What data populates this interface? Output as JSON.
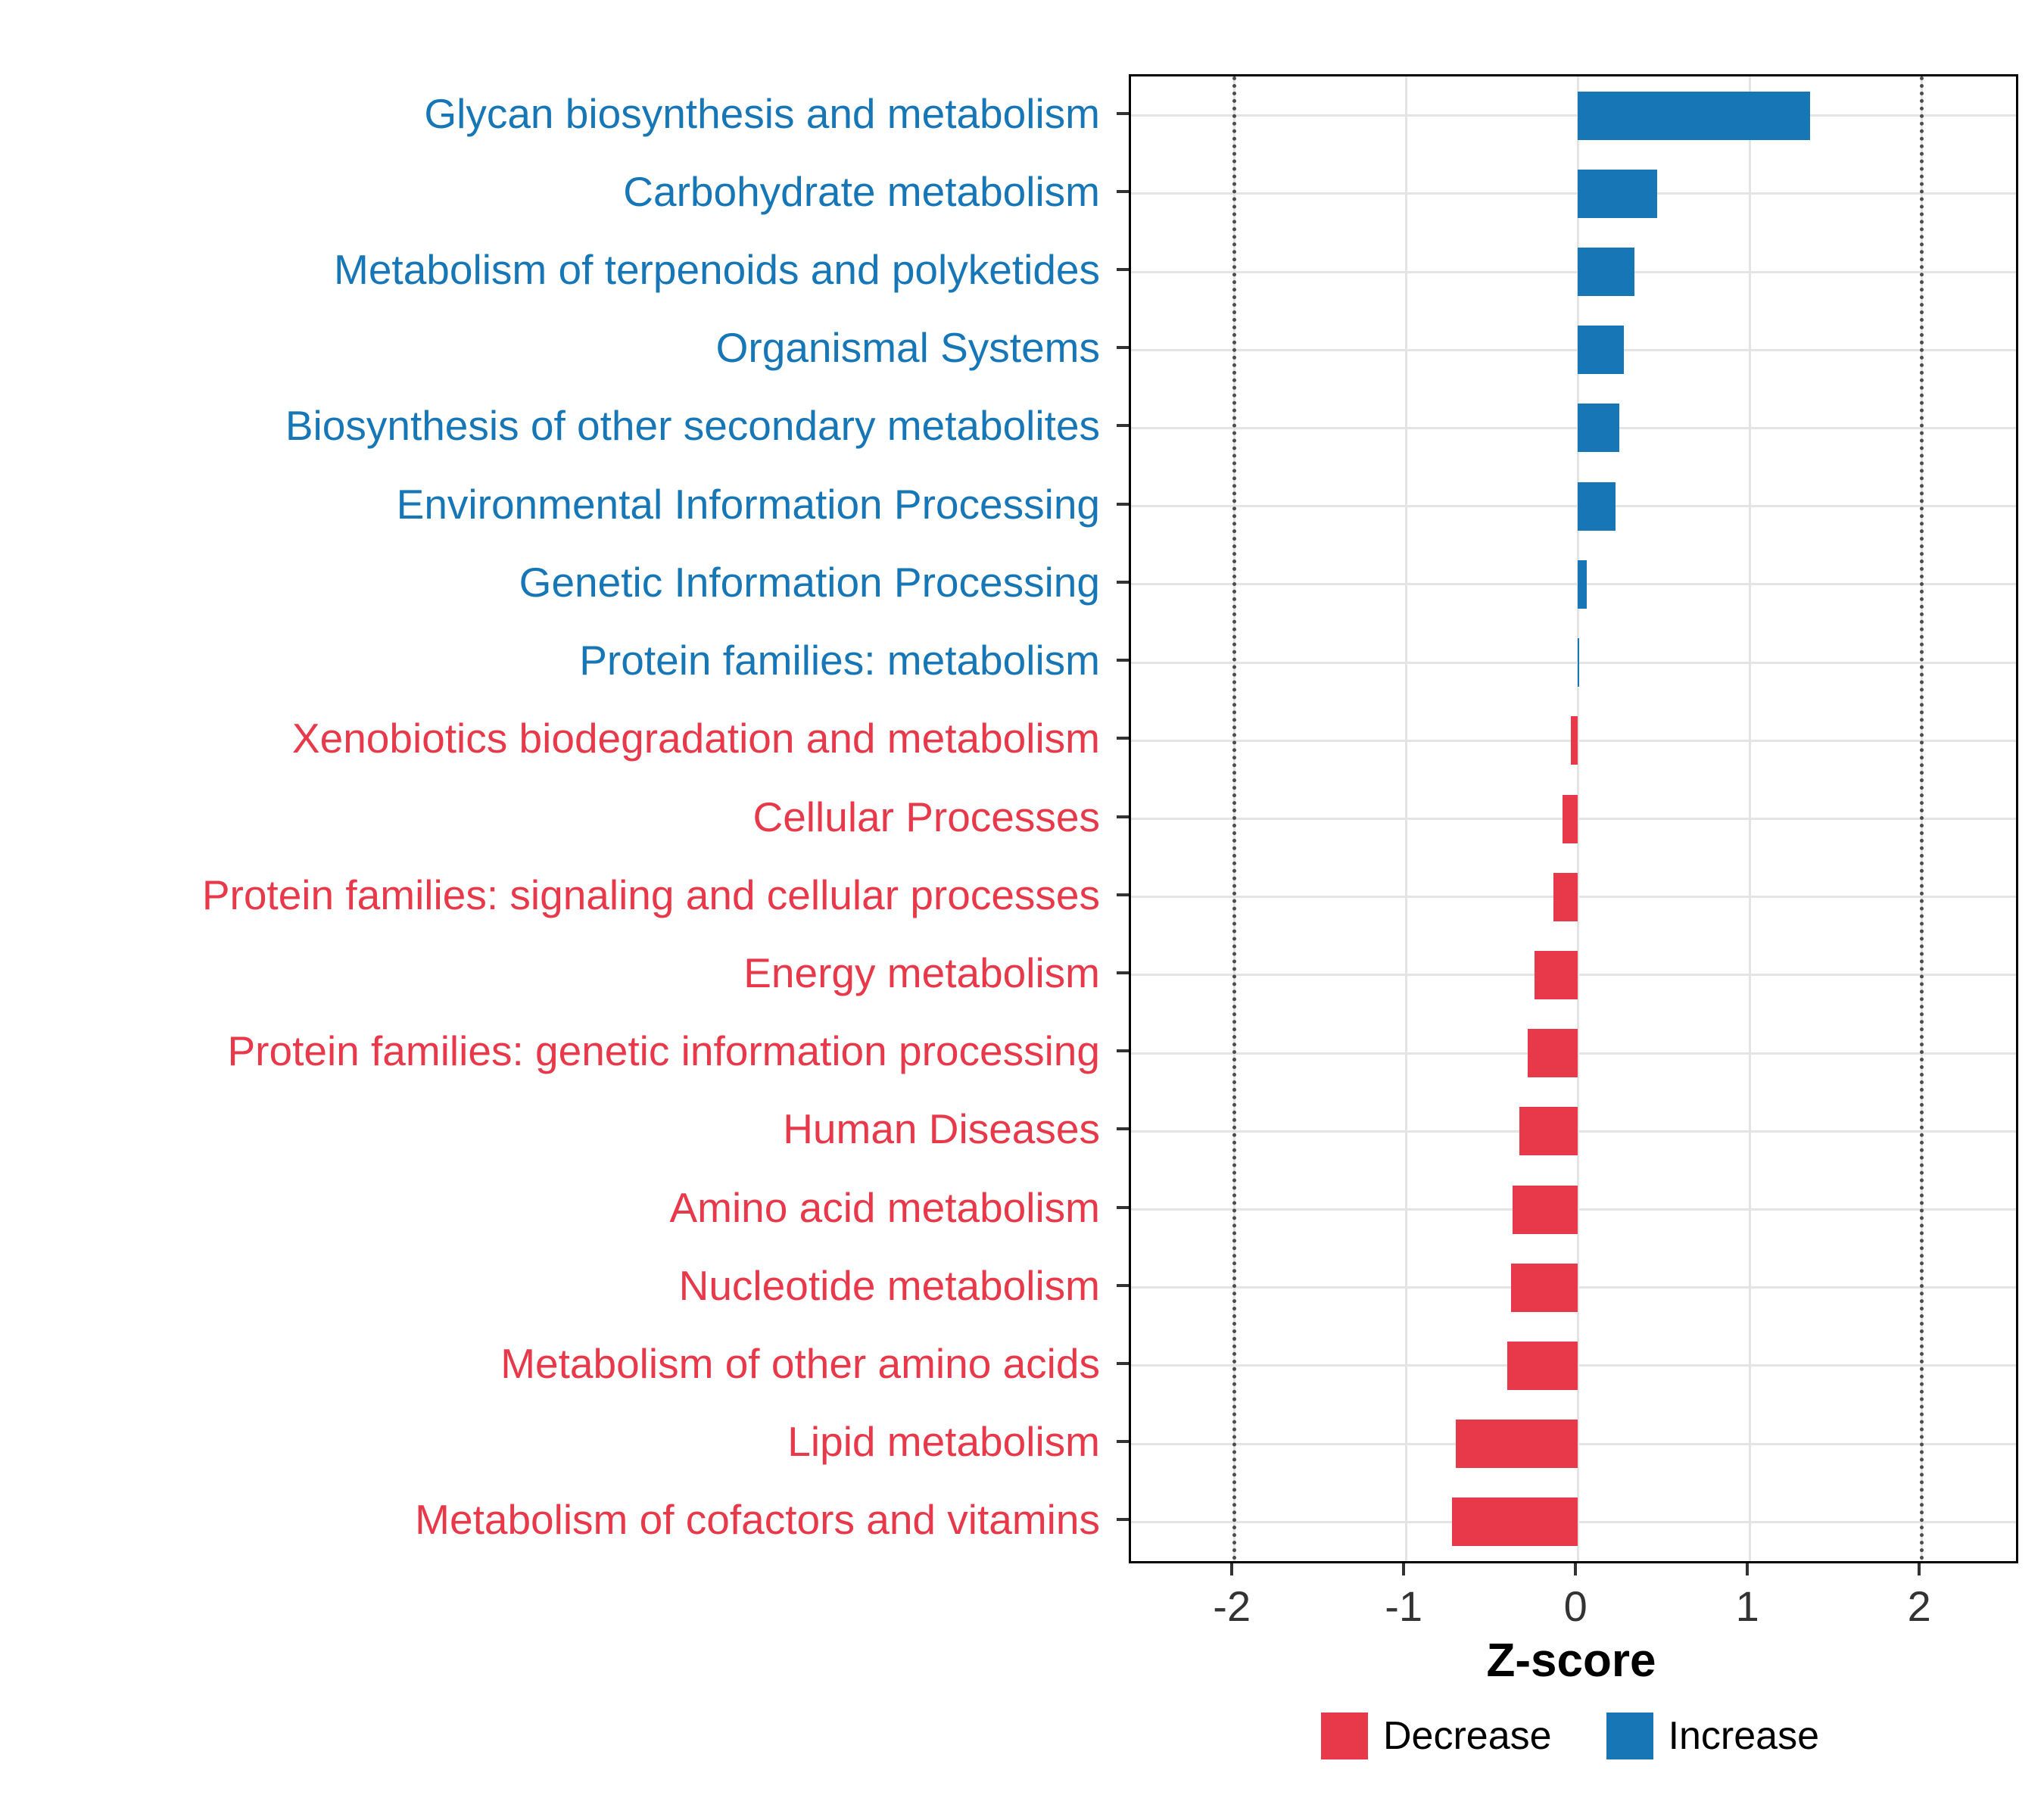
{
  "colors": {
    "increase": "#1777B6",
    "decrease": "#E8394A",
    "grid": "#E4E4E4",
    "panel_border": "#000000",
    "reference_line": "#4D4D4D",
    "tick_text": "#333333"
  },
  "chart_data": {
    "type": "bar",
    "orientation": "horizontal",
    "title": "",
    "xlabel": "Z-score",
    "ylabel": "",
    "xlim": [
      -2.6,
      2.55
    ],
    "xticks": [
      -2,
      -1,
      0,
      1,
      2
    ],
    "reference_lines": [
      -2,
      2
    ],
    "grid": true,
    "legend_position": "bottom-right",
    "categories": [
      "Glycan biosynthesis and metabolism",
      "Carbohydrate metabolism",
      "Metabolism of terpenoids and polyketides",
      "Organismal Systems",
      "Biosynthesis of other secondary metabolites",
      "Environmental Information Processing",
      "Genetic Information Processing",
      "Protein families: metabolism",
      "Xenobiotics biodegradation and metabolism",
      "Cellular Processes",
      "Protein families: signaling and cellular processes",
      "Energy metabolism",
      "Protein families: genetic information processing",
      "Human Diseases",
      "Amino acid metabolism",
      "Nucleotide metabolism",
      "Metabolism of other amino acids",
      "Lipid metabolism",
      "Metabolism of cofactors and vitamins"
    ],
    "values": [
      1.35,
      0.46,
      0.33,
      0.27,
      0.24,
      0.22,
      0.05,
      0.01,
      -0.04,
      -0.09,
      -0.14,
      -0.25,
      -0.29,
      -0.34,
      -0.38,
      -0.39,
      -0.41,
      -0.71,
      -0.73
    ],
    "directions": [
      "Increase",
      "Increase",
      "Increase",
      "Increase",
      "Increase",
      "Increase",
      "Increase",
      "Increase",
      "Decrease",
      "Decrease",
      "Decrease",
      "Decrease",
      "Decrease",
      "Decrease",
      "Decrease",
      "Decrease",
      "Decrease",
      "Decrease",
      "Decrease"
    ],
    "legend": [
      {
        "label": "Decrease",
        "color": "#E8394A"
      },
      {
        "label": "Increase",
        "color": "#1777B6"
      }
    ]
  }
}
